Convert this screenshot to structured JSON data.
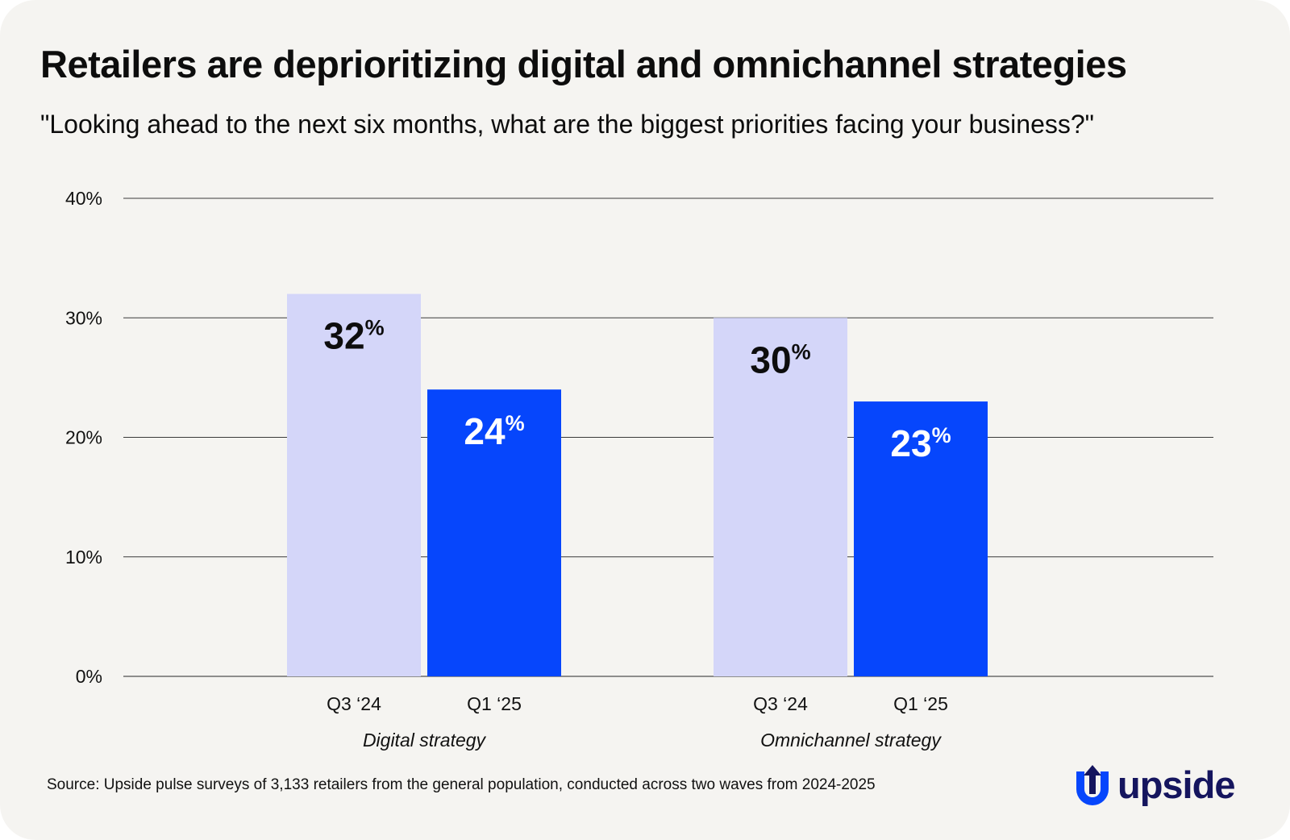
{
  "header": {
    "title": "Retailers are deprioritizing digital and omnichannel strategies",
    "subtitle": "\"Looking ahead to the next six months, what are the biggest priorities facing your business?\""
  },
  "footer": {
    "source": "Source: Upside pulse surveys of 3,133 retailers from the general population, conducted across two waves from 2024-2025",
    "logo_text": "upside"
  },
  "colors": {
    "background": "#f5f4f1",
    "gridline": "#3a3a3a",
    "series_q3_24": "#d4d6f9",
    "series_q1_25": "#0646fc",
    "label_dark": "#0d0d0d",
    "label_light": "#ffffff",
    "logo": "#15155e",
    "logo_mark": "#0646fc"
  },
  "chart_data": {
    "type": "bar",
    "title": "Retailers are deprioritizing digital and omnichannel strategies",
    "subtitle": "\"Looking ahead to the next six months, what are the biggest priorities facing your business?\"",
    "xlabel": "",
    "ylabel": "",
    "ylim": [
      0,
      40
    ],
    "yticks": [
      0,
      10,
      20,
      30,
      40
    ],
    "ytick_labels": [
      "0%",
      "10%",
      "20%",
      "30%",
      "40%"
    ],
    "grid": true,
    "legend": "none",
    "categories": [
      "Digital strategy",
      "Omnichannel strategy"
    ],
    "series": [
      {
        "name": "Q3 ‘24",
        "values": [
          32,
          30
        ],
        "value_labels": [
          "32",
          "30"
        ],
        "label_suffix": "%"
      },
      {
        "name": "Q1 ‘25",
        "values": [
          24,
          23
        ],
        "value_labels": [
          "24",
          "23"
        ],
        "label_suffix": "%"
      }
    ]
  }
}
